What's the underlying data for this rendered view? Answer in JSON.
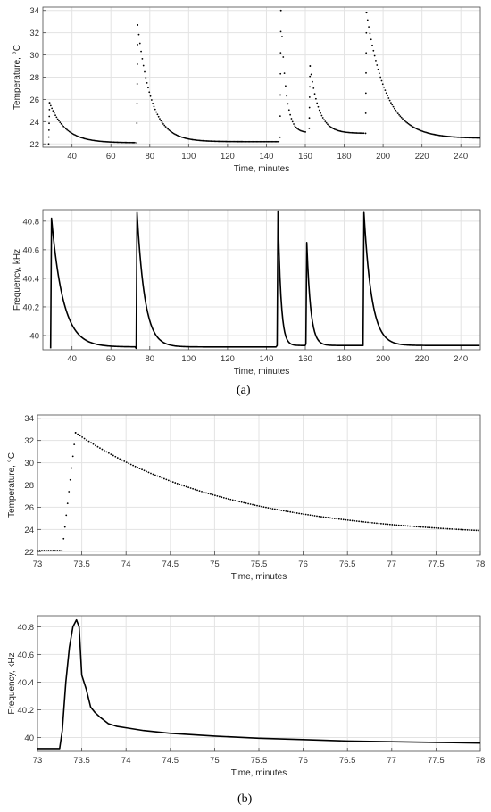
{
  "panel_labels": {
    "a": "(a)",
    "b": "(b)"
  },
  "chart_data": [
    {
      "type": "scatter",
      "xlabel": "Time, minutes",
      "ylabel": "Temperature, °C",
      "xlim": [
        25,
        250
      ],
      "ylim": [
        21.7,
        34.3
      ],
      "xticks": [
        40,
        60,
        80,
        100,
        120,
        140,
        160,
        180,
        200,
        220,
        240
      ],
      "yticks": [
        22,
        24,
        26,
        28,
        30,
        32,
        34
      ],
      "grid": true,
      "events": [
        {
          "start": 28.0,
          "rise_from": 22.0,
          "peak": 25.7,
          "base": 22.1,
          "end": 72.5,
          "tau": 8.0
        },
        {
          "start": 73.3,
          "rise_from": 22.1,
          "peak": 32.7,
          "base": 22.2,
          "end": 146.5,
          "tau": 7.0
        },
        {
          "start": 147.0,
          "rise_from": 22.6,
          "peak": 34.0,
          "base": 23.0,
          "end": 160.5,
          "tau": 2.5
        },
        {
          "start": 162.0,
          "rise_from": 23.4,
          "peak": 29.0,
          "base": 22.95,
          "end": 190.5,
          "tau": 4.5
        },
        {
          "start": 191.0,
          "rise_from": 22.95,
          "peak": 33.8,
          "base": 22.5,
          "end": 250.0,
          "tau": 10.0
        }
      ]
    },
    {
      "type": "line",
      "xlabel": "Time, minutes",
      "ylabel": "Frequency, kHz",
      "xlim": [
        25,
        250
      ],
      "ylim": [
        39.9,
        40.88
      ],
      "xticks": [
        40,
        60,
        80,
        100,
        120,
        140,
        160,
        180,
        200,
        220,
        240
      ],
      "yticks": [
        40,
        40.2,
        40.4,
        40.6,
        40.8
      ],
      "yticklabels": [
        "40",
        "40.2",
        "40.4",
        "40.6",
        "40.8"
      ],
      "grid": true,
      "events": [
        {
          "start": 29.0,
          "rise_from": 39.91,
          "peak": 40.82,
          "base": 39.92,
          "end": 72.5,
          "tau": 6.0
        },
        {
          "start": 73.0,
          "rise_from": 39.91,
          "peak": 40.86,
          "base": 39.92,
          "end": 145.3,
          "tau": 4.0
        },
        {
          "start": 145.5,
          "rise_from": 39.93,
          "peak": 40.87,
          "base": 39.93,
          "end": 160.0,
          "tau": 1.5
        },
        {
          "start": 160.3,
          "rise_from": 39.94,
          "peak": 40.65,
          "base": 39.93,
          "end": 189.5,
          "tau": 2.0
        },
        {
          "start": 189.7,
          "rise_from": 39.93,
          "peak": 40.86,
          "base": 39.93,
          "end": 250.0,
          "tau": 4.0
        }
      ]
    },
    {
      "type": "scatter",
      "xlabel": "Time, minutes",
      "ylabel": "Temperature, °C",
      "xlim": [
        73,
        78
      ],
      "ylim": [
        21.7,
        34.3
      ],
      "xticks": [
        73,
        73.5,
        74,
        74.5,
        75,
        75.5,
        76,
        76.5,
        77,
        77.5,
        78
      ],
      "xticklabels": [
        "73",
        "73.5",
        "74",
        "74.5",
        "75",
        "75.5",
        "76",
        "76.5",
        "77",
        "77.5",
        "78"
      ],
      "yticks": [
        22,
        24,
        26,
        28,
        30,
        32,
        34
      ],
      "grid": true,
      "segment": {
        "flat_value": 22.1,
        "flat_end": 73.28,
        "peak_time": 73.43,
        "peak": 32.7,
        "decay_base": 23.2,
        "decay_tau": 1.75
      }
    },
    {
      "type": "line",
      "xlabel": "Time, minutes",
      "ylabel": "Frequency, kHz",
      "xlim": [
        73,
        78
      ],
      "ylim": [
        39.9,
        40.88
      ],
      "xticks": [
        73,
        73.5,
        74,
        74.5,
        75,
        75.5,
        76,
        76.5,
        77,
        77.5,
        78
      ],
      "xticklabels": [
        "73",
        "73.5",
        "74",
        "74.5",
        "75",
        "75.5",
        "76",
        "76.5",
        "77",
        "77.5",
        "78"
      ],
      "yticks": [
        40,
        40.2,
        40.4,
        40.6,
        40.8
      ],
      "yticklabels": [
        "40",
        "40.2",
        "40.4",
        "40.6",
        "40.8"
      ],
      "grid": true,
      "points": [
        [
          73,
          39.92
        ],
        [
          73.25,
          39.92
        ],
        [
          73.28,
          40.05
        ],
        [
          73.32,
          40.4
        ],
        [
          73.36,
          40.65
        ],
        [
          73.4,
          40.8
        ],
        [
          73.44,
          40.85
        ],
        [
          73.47,
          40.8
        ],
        [
          73.5,
          40.45
        ],
        [
          73.55,
          40.35
        ],
        [
          73.6,
          40.22
        ],
        [
          73.65,
          40.18
        ],
        [
          73.7,
          40.15
        ],
        [
          73.8,
          40.1
        ],
        [
          73.9,
          40.08
        ],
        [
          74,
          40.07
        ],
        [
          74.2,
          40.05
        ],
        [
          74.5,
          40.03
        ],
        [
          75,
          40.01
        ],
        [
          75.5,
          39.995
        ],
        [
          76,
          39.985
        ],
        [
          76.5,
          39.975
        ],
        [
          77,
          39.97
        ],
        [
          77.5,
          39.965
        ],
        [
          78,
          39.96
        ]
      ]
    }
  ]
}
